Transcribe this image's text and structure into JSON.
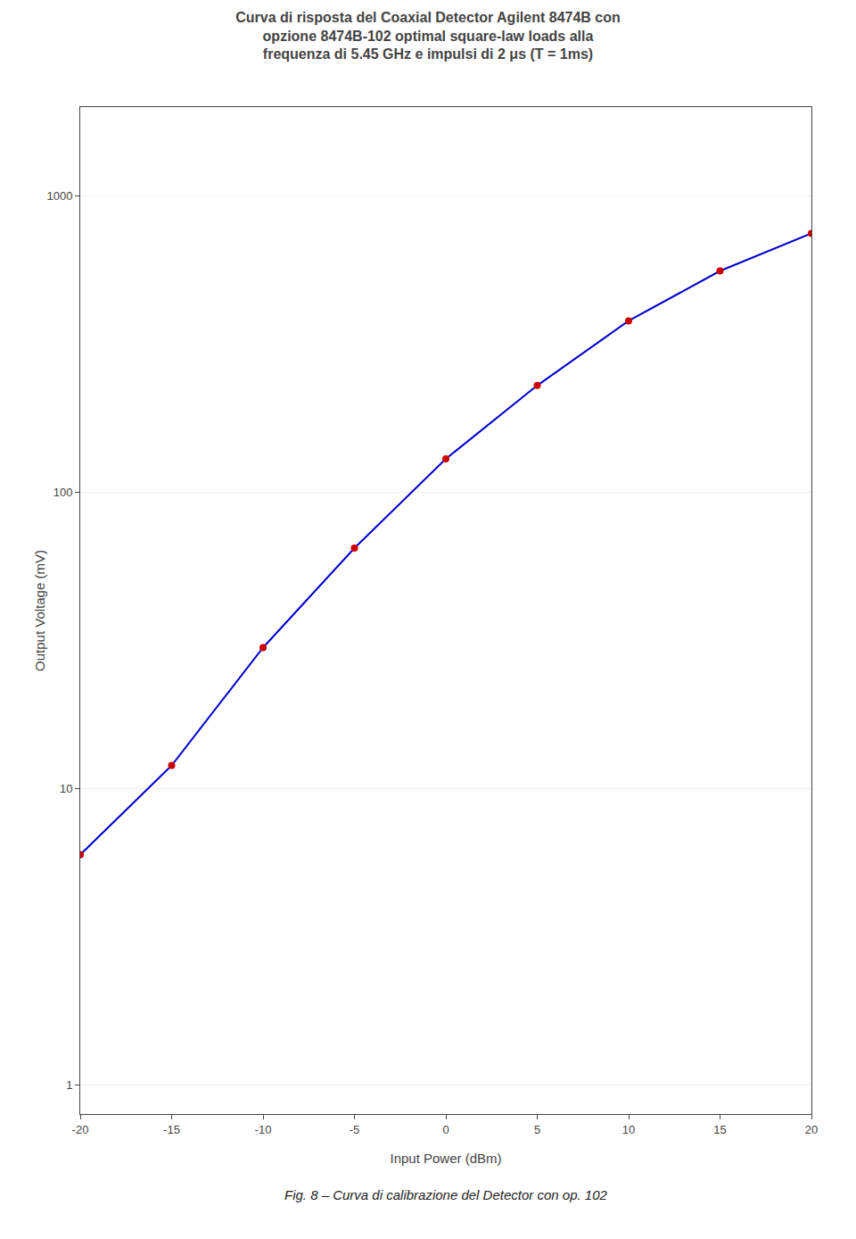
{
  "chart_data": {
    "type": "line",
    "title": "Curva di risposta del Coaxial Detector Agilent 8474B con\nopzione 8474B-102 optimal square-law loads alla\nfrequenza di 5.45 GHz e impulsi di 2 μs (T = 1ms)",
    "x_label": "Input Power (dBm)",
    "y_label": "Output Voltage (mV)",
    "annotations": [
      "Fig. 8 – Curva di calibrazione del Detector con op. 102"
    ],
    "x": [
      -20,
      -15,
      -10,
      -5,
      0,
      5,
      10,
      15,
      20
    ],
    "values": [
      6.0,
      12.0,
      30.0,
      65.0,
      130.0,
      230.0,
      380.0,
      560.0,
      750.0
    ],
    "color": "#0000cc",
    "colors": [
      "#cc0000",
      "#cc0000",
      "#cc0000",
      "#cc0000",
      "#cc0000",
      "#cc0000",
      "#cc0000",
      "#cc0000",
      "#cc0000"
    ],
    "marker": "circle",
    "log": "y",
    "xlim": [
      -20,
      20
    ],
    "xticks": [
      -20,
      -15,
      -10,
      -5,
      0,
      5,
      10,
      15,
      20
    ],
    "ylim": [
      0.8,
      2000
    ],
    "yticks": [
      1,
      10,
      100,
      1000
    ],
    "grid": true
  }
}
